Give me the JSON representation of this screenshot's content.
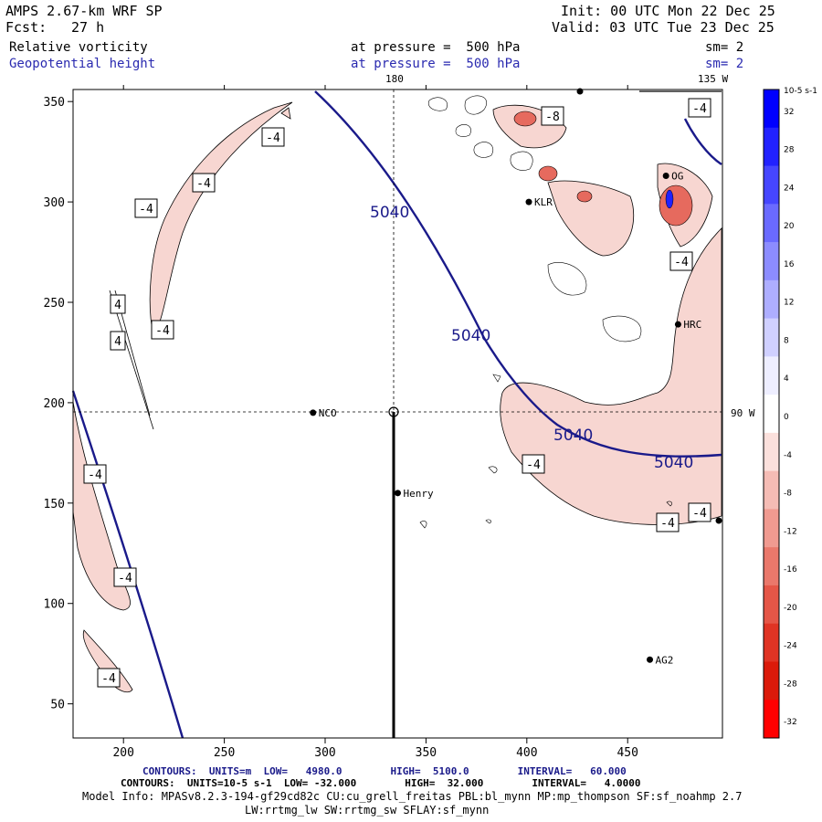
{
  "header": {
    "model": "AMPS 2.67-km WRF SP",
    "fcst_label": "Fcst:",
    "fcst_value": "27 h",
    "init": "Init: 00 UTC Mon 22 Dec 25",
    "valid": "Valid: 03 UTC Tue 23 Dec 25",
    "field1": "Relative vorticity",
    "field2": "Geopotential height",
    "pressure1": "at pressure =  500 hPa",
    "pressure2": "at pressure =  500 hPa",
    "sm1": "sm= 2",
    "sm2": "sm= 2"
  },
  "map_labels": {
    "lon_180": "180",
    "lon_135w": "135 W",
    "lon_90w": "90 W"
  },
  "stations": [
    {
      "name": "KLR",
      "x": 401,
      "y": 300
    },
    {
      "name": "OG",
      "x": 469,
      "y": 313
    },
    {
      "name": "HRC",
      "x": 475,
      "y": 239
    },
    {
      "name": "NCO",
      "x": 294,
      "y": 195
    },
    {
      "name": "Henry",
      "x": 336,
      "y": 155
    },
    {
      "name": "AG2",
      "x": 461,
      "y": 72
    }
  ],
  "height_contour_labels": [
    "5040",
    "5040",
    "5040",
    "5040"
  ],
  "vort_contour_labels": [
    "-4",
    "-4",
    "-4",
    "-4",
    "-4",
    "-4",
    "4",
    "4",
    "-4",
    "-4",
    "-4",
    "-4",
    "-4",
    "-8",
    "-4"
  ],
  "colorbar": {
    "unit": "10-5 s-1",
    "ticks": [
      "32",
      "28",
      "24",
      "20",
      "16",
      "12",
      "8",
      "4",
      "0",
      "-4",
      "-8",
      "-12",
      "-16",
      "-20",
      "-24",
      "-28",
      "-32"
    ],
    "colors": [
      "#0000ff",
      "#2222ff",
      "#4646ff",
      "#6a6aff",
      "#8c8cff",
      "#aeaeff",
      "#d0d0ff",
      "#eeeeff",
      "#ffffff",
      "#fbe0dc",
      "#f5bcb5",
      "#f09a90",
      "#ea786b",
      "#e55647",
      "#e03424",
      "#db1a0a",
      "#ff0000"
    ]
  },
  "chart_data": {
    "type": "map",
    "title": "Relative vorticity / Geopotential height at 500 hPa",
    "x_ticks": [
      "200",
      "250",
      "300",
      "350",
      "400",
      "450"
    ],
    "y_ticks": [
      "50",
      "100",
      "150",
      "200",
      "250",
      "300",
      "350"
    ],
    "xlim": [
      175,
      497
    ],
    "ylim": [
      33,
      356
    ]
  },
  "footer": {
    "line1_prefix": "CONTOURS:  UNITS=m  LOW=   4980.0        HIGH=  5100.0        INTERVAL=   60.000",
    "line2": "CONTOURS:  UNITS=10-5 s-1  LOW= -32.000        HIGH=  32.000        INTERVAL=   4.0000",
    "line3": "Model Info: MPASv8.2.3-194-gf29cd82c CU:cu_grell_freitas PBL:bl_mynn MP:mp_thompson SF:sf_noahmp 2.7",
    "line4": "LW:rrtmg_lw SW:rrtmg_sw SFLAY:sf_mynn"
  }
}
